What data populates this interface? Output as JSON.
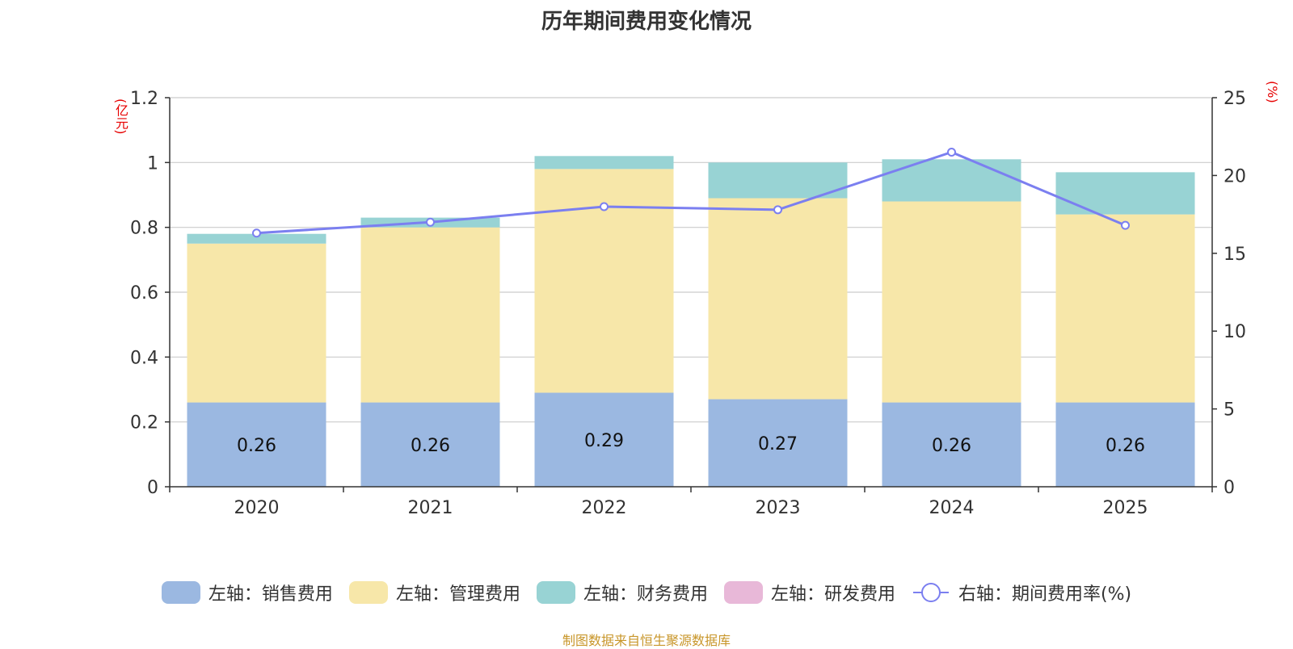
{
  "chart_data": {
    "type": "bar",
    "title": "历年期间费用变化情况",
    "categories": [
      "2020",
      "2021",
      "2022",
      "2023",
      "2024",
      "2025"
    ],
    "left_axis": {
      "unit": "(亿元)",
      "ylim": [
        0,
        1.2
      ],
      "ticks": [
        "0",
        "0.2",
        "0.4",
        "0.6",
        "0.8",
        "1",
        "1.2"
      ],
      "tick_values": [
        0,
        0.2,
        0.4,
        0.6,
        0.8,
        1.0,
        1.2
      ]
    },
    "right_axis": {
      "unit": "(%)",
      "ylim": [
        0,
        25
      ],
      "ticks": [
        "0",
        "5",
        "10",
        "15",
        "20",
        "25"
      ],
      "tick_values": [
        0,
        5,
        10,
        15,
        20,
        25
      ]
    },
    "series": [
      {
        "name": "左轴：销售费用",
        "axis": "left",
        "stack": true,
        "color": "#9bb8e1",
        "values": [
          0.26,
          0.26,
          0.29,
          0.27,
          0.26,
          0.26
        ],
        "labels": [
          "0.26",
          "0.26",
          "0.29",
          "0.27",
          "0.26",
          "0.26"
        ]
      },
      {
        "name": "左轴：管理费用",
        "axis": "left",
        "stack": true,
        "color": "#f7e7a9",
        "values": [
          0.49,
          0.54,
          0.69,
          0.62,
          0.62,
          0.58
        ]
      },
      {
        "name": "左轴：财务费用",
        "axis": "left",
        "stack": true,
        "color": "#98d3d4",
        "values": [
          0.03,
          0.03,
          0.04,
          0.11,
          0.13,
          0.13
        ]
      },
      {
        "name": "左轴：研发费用",
        "axis": "left",
        "stack": true,
        "color": "#e8b8d8",
        "values": [
          0,
          0,
          0,
          0,
          0,
          0
        ]
      },
      {
        "name": "右轴：期间费用率(%)",
        "axis": "right",
        "type": "line",
        "color": "#7b7ff0",
        "values": [
          16.3,
          17.0,
          18.0,
          17.8,
          21.5,
          16.8
        ]
      }
    ],
    "grid": true,
    "legend_position": "bottom"
  },
  "source": "制图数据来自恒生聚源数据库"
}
